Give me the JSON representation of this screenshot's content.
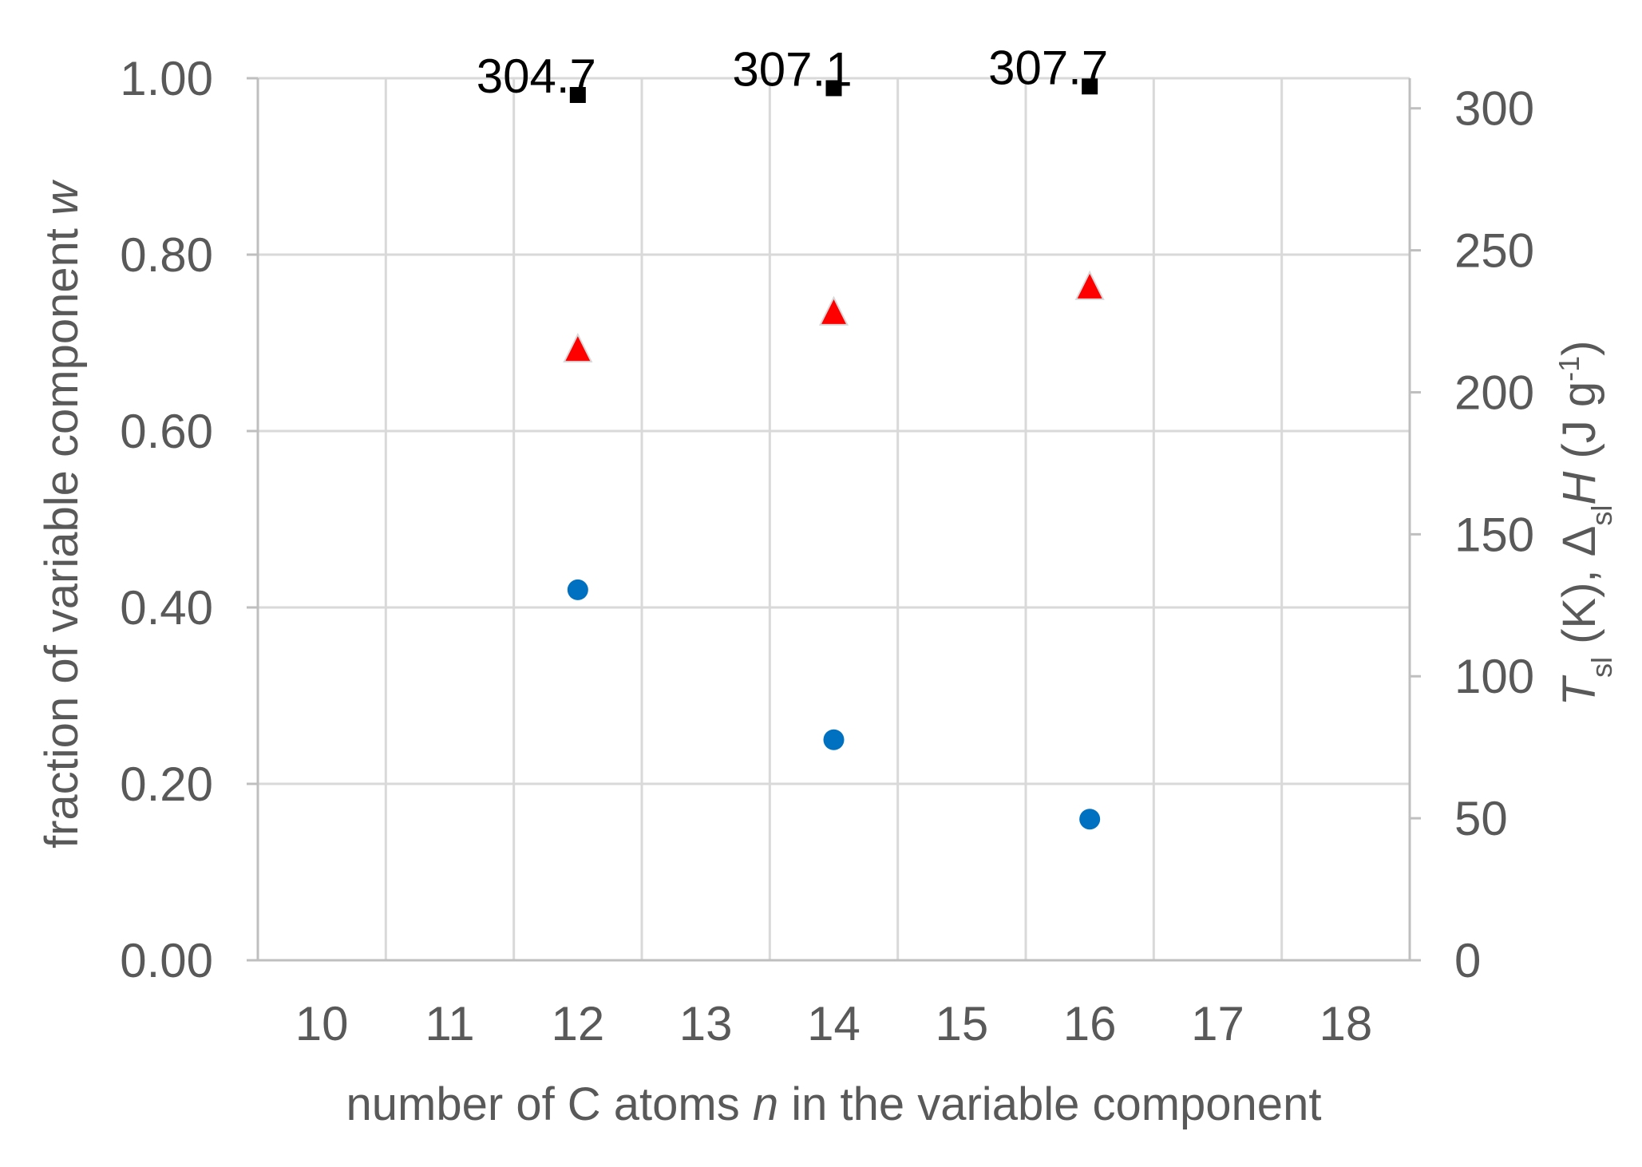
{
  "chart_data": {
    "type": "scatter",
    "x_axis": {
      "label_parts": [
        {
          "text": "number of C atoms ",
          "italic": false
        },
        {
          "text": "n",
          "italic": true
        },
        {
          "text": " in the variable component",
          "italic": false
        }
      ],
      "range": [
        9.5,
        18.5
      ],
      "ticks": [
        10,
        11,
        12,
        13,
        14,
        15,
        16,
        17,
        18
      ],
      "tick_labels": [
        "10",
        "11",
        "12",
        "13",
        "14",
        "15",
        "16",
        "17",
        "18"
      ]
    },
    "y_axis_left": {
      "label_parts": [
        {
          "text": "fraction of variable component ",
          "italic": false
        },
        {
          "text": "w",
          "italic": true
        }
      ],
      "range": [
        0,
        1
      ],
      "ticks": [
        0,
        0.2,
        0.4,
        0.6,
        0.8,
        1.0
      ],
      "tick_labels": [
        "0.00",
        "0.20",
        "0.40",
        "0.60",
        "0.80",
        "1.00"
      ]
    },
    "y_axis_right": {
      "label_parts": [
        {
          "text": "T",
          "italic": true
        },
        {
          "text": "sl",
          "sub": true
        },
        {
          "text": " (K), Δ",
          "italic": false
        },
        {
          "text": "sl",
          "sub": true
        },
        {
          "text": "H",
          "italic": true
        },
        {
          "text": " (J g",
          "italic": false
        },
        {
          "text": "-1",
          "sup": true
        },
        {
          "text": ")",
          "italic": false
        }
      ],
      "range": [
        0,
        310.6
      ],
      "ticks": [
        0,
        50,
        100,
        150,
        200,
        250,
        300
      ],
      "tick_labels": [
        "0",
        "50",
        "100",
        "150",
        "200",
        "250",
        "300"
      ]
    },
    "grid": true,
    "legend": "none",
    "series": [
      {
        "marker": "circle",
        "color": "#0070c0",
        "axis": "left",
        "x": [
          12,
          14,
          16
        ],
        "y": [
          0.42,
          0.25,
          0.16
        ]
      },
      {
        "marker": "triangle",
        "color": "#ff0000",
        "axis": "right",
        "x": [
          12,
          14,
          16
        ],
        "y": [
          215,
          228,
          237
        ]
      },
      {
        "marker": "square",
        "color": "#000000",
        "axis": "right",
        "x": [
          12,
          14,
          16
        ],
        "y": [
          304.7,
          307.1,
          307.7
        ],
        "data_labels": [
          "304.7",
          "307.1",
          "307.7"
        ]
      }
    ]
  }
}
